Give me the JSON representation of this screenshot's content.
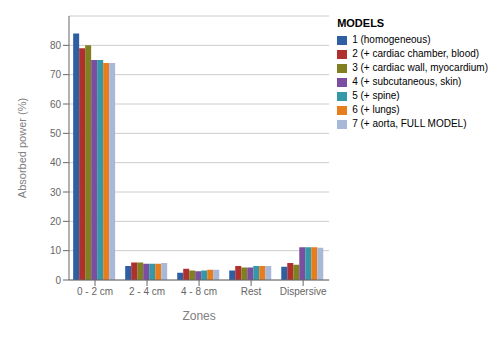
{
  "chart_data": {
    "type": "bar",
    "categories": [
      "0 - 2 cm",
      "2 - 4 cm",
      "4 - 8 cm",
      "Rest",
      "Dispersive"
    ],
    "series": [
      {
        "name": "1 (homogeneous)",
        "color": "#2E5FA3",
        "values": [
          84,
          4.8,
          2.5,
          3.2,
          4.5
        ]
      },
      {
        "name": "2 (+ cardiac chamber, blood)",
        "color": "#B03030",
        "values": [
          79,
          6.0,
          3.8,
          4.8,
          5.8
        ]
      },
      {
        "name": "3 (+ cardiac wall, myocardium)",
        "color": "#808020",
        "values": [
          80,
          6.0,
          3.2,
          4.3,
          5.2
        ]
      },
      {
        "name": "4 (+ subcutaneous, skin)",
        "color": "#7B4EA0",
        "values": [
          75,
          5.5,
          3.0,
          4.3,
          11.2
        ]
      },
      {
        "name": "5 (+ spine)",
        "color": "#3498A8",
        "values": [
          75,
          5.5,
          3.2,
          4.8,
          11.2
        ]
      },
      {
        "name": "6 (+ lungs)",
        "color": "#E87D1E",
        "values": [
          74,
          5.5,
          3.5,
          4.8,
          11.2
        ]
      },
      {
        "name": "7 (+ aorta, FULL MODEL)",
        "color": "#A8B8D8",
        "values": [
          74,
          5.8,
          3.5,
          4.8,
          11.0
        ]
      }
    ],
    "xlabel": "Zones",
    "ylabel": "Absorbed power (%)",
    "legend_title": "MODELS",
    "ylim": [
      0,
      90
    ],
    "yticks": [
      0,
      10,
      20,
      30,
      40,
      50,
      60,
      70,
      80
    ],
    "grid": true,
    "legend": "upper right"
  }
}
